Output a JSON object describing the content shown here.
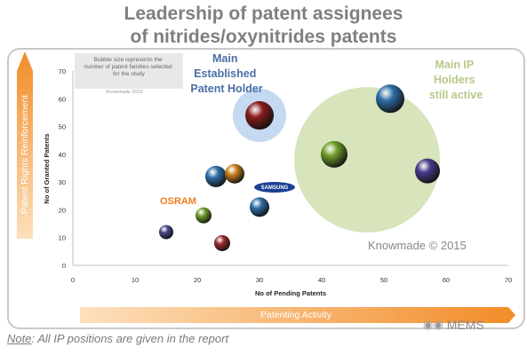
{
  "title": {
    "line1": "Leadership of patent assignees",
    "line2": "of nitrides/oxynitrides patents"
  },
  "note": {
    "label": "Note",
    "text": ": All IP positions are given in the report"
  },
  "watermark": {
    "icon": "wechat-icon",
    "text": "MEMS"
  },
  "colors": {
    "title": "#7f7f7f",
    "arrow_orange": "#f5a447",
    "established_ring": "#c5d9f1",
    "active_circle": "#d7e4bc",
    "established_text": "#4a6fa5",
    "active_text": "#b5c98a",
    "osram": "#f07f1e",
    "samsung": "#1c3f94"
  },
  "chart_data": {
    "type": "scatter",
    "xlabel": "No of Pending Patents",
    "ylabel": "No of Granted Patents",
    "xlim": [
      0,
      70
    ],
    "ylim": [
      0,
      70
    ],
    "xticks": [
      0,
      10,
      20,
      30,
      40,
      50,
      60,
      70
    ],
    "yticks": [
      0,
      10,
      20,
      30,
      40,
      50,
      60,
      70
    ],
    "grid": false,
    "points": [
      {
        "x": 15,
        "y": 12,
        "color": "#4a4a8c"
      },
      {
        "x": 24,
        "y": 8,
        "color": "#9b2a2a"
      },
      {
        "x": 21,
        "y": 18,
        "color": "#6f9e2a"
      },
      {
        "x": 23,
        "y": 32,
        "color": "#2f6fa8"
      },
      {
        "x": 26,
        "y": 33,
        "color": "#c8801e"
      },
      {
        "x": 30,
        "y": 21,
        "color": "#2f6fa8"
      },
      {
        "x": 30,
        "y": 54,
        "color": "#8a1c1c"
      },
      {
        "x": 42,
        "y": 40,
        "color": "#6f9e2a"
      },
      {
        "x": 51,
        "y": 60,
        "color": "#2f6fa8"
      },
      {
        "x": 57,
        "y": 34,
        "color": "#4a3a8c"
      }
    ],
    "annotations": {
      "bubble_note": "Bubble size represents the number of patent families selected for the study",
      "bubble_note_source": "Knowmade 2015",
      "established": [
        "Main",
        "Established",
        "Patent Holder"
      ],
      "active": [
        "Main IP",
        "Holders",
        "still active"
      ],
      "osram": "OSRAM",
      "samsung": "SAMSUNG",
      "copyright": "Knowmade © 2015"
    },
    "axis_arrows": {
      "y": "Patent Rights Reinforcement",
      "x": "Patenting Activity"
    }
  }
}
